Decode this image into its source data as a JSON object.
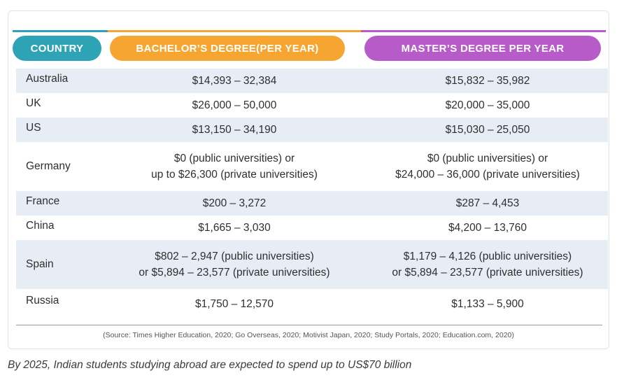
{
  "colors": {
    "country_header": "#2ea3b5",
    "bachelor_header": "#f7a531",
    "master_header": "#b65bc7",
    "row_shade": "#e6edf5"
  },
  "table": {
    "headers": {
      "country": "COUNTRY",
      "bachelor": "BACHELOR’S DEGREE(PER YEAR)",
      "master": "MASTER’S DEGREE PER YEAR"
    },
    "rows": [
      {
        "country": "Australia",
        "bachelor": [
          "$14,393 – 32,384"
        ],
        "master": [
          "$15,832 – 35,982"
        ]
      },
      {
        "country": "UK",
        "bachelor": [
          "$26,000 – 50,000"
        ],
        "master": [
          "$20,000 – 35,000"
        ]
      },
      {
        "country": "US",
        "bachelor": [
          "$13,150 – 34,190"
        ],
        "master": [
          "$15,030 – 25,050"
        ]
      },
      {
        "country": "Germany",
        "bachelor": [
          "$0 (public universities) or",
          "up to $26,300 (private universities)"
        ],
        "master": [
          "$0 (public universities) or",
          "$24,000 – 36,000 (private universities)"
        ]
      },
      {
        "country": "France",
        "bachelor": [
          "$200 – 3,272"
        ],
        "master": [
          "$287 – 4,453"
        ]
      },
      {
        "country": "China",
        "bachelor": [
          "$1,665 – 3,030"
        ],
        "master": [
          "$4,200 – 13,760"
        ]
      },
      {
        "country": "Spain",
        "bachelor": [
          "$802 – 2,947 (public universities)",
          "or $5,894 – 23,577 (private universities)"
        ],
        "master": [
          "$1,179 – 4,126 (public universities)",
          "or $5,894 – 23,577 (private universities)"
        ]
      },
      {
        "country": "Russia",
        "bachelor": [
          "$1,750 – 12,570"
        ],
        "master": [
          "$1,133 – 5,900"
        ]
      }
    ],
    "source": "(Source: Times Higher Education, 2020; Go Overseas, 2020; Motivist Japan, 2020; Study Portals, 2020; Education.com, 2020)"
  },
  "caption": "By 2025, Indian students studying abroad are expected to spend up to US$70 billion"
}
